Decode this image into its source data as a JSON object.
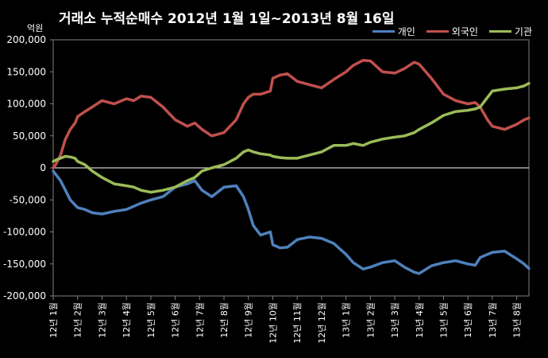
{
  "chart_data": {
    "type": "line",
    "title": "거래소 누적순매수 2012년 1월 1일~2013년 8월 16일",
    "ylabel": "억원",
    "ylim": [
      -200000,
      200000
    ],
    "yticks": [
      200000,
      150000,
      100000,
      50000,
      0,
      -50000,
      -100000,
      -150000,
      -200000
    ],
    "ytick_labels": [
      "200,000",
      "150,000",
      "100,000",
      "50,000",
      "0",
      "-50,000",
      "-100,000",
      "-150,000",
      "-200,000"
    ],
    "x_tick_labels": [
      "12년 1월",
      "12년 2월",
      "12년 3월",
      "12년 4월",
      "12년 5월",
      "12년 6월",
      "12년 7월",
      "12년 8월",
      "12년 9월",
      "12년 10월",
      "12년 11월",
      "12년 12월",
      "13년 1월",
      "13년 2월",
      "13년 3월",
      "13년 4월",
      "13년 5월",
      "13년 6월",
      "13년 7월",
      "13년 8월"
    ],
    "x": [
      0,
      0.1,
      0.3,
      0.5,
      0.7,
      0.9,
      1.0,
      1.3,
      1.6,
      2.0,
      2.5,
      3.0,
      3.3,
      3.6,
      4.0,
      4.5,
      5.0,
      5.5,
      5.8,
      6.1,
      6.5,
      7.0,
      7.5,
      7.8,
      8.0,
      8.2,
      8.5,
      8.9,
      9.0,
      9.3,
      9.6,
      10.0,
      10.5,
      11.0,
      11.5,
      12.0,
      12.3,
      12.7,
      13.0,
      13.5,
      14.0,
      14.4,
      14.8,
      15.0,
      15.5,
      16.0,
      16.5,
      17.0,
      17.3,
      17.5,
      17.8,
      18.0,
      18.5,
      19.0,
      19.3,
      19.5
    ],
    "legend_position": "top-right",
    "grid": false,
    "series": [
      {
        "name": "개인",
        "color": "#4f81bd",
        "values": [
          -5000,
          -10000,
          -20000,
          -35000,
          -50000,
          -58000,
          -62000,
          -65000,
          -70000,
          -72000,
          -68000,
          -65000,
          -60000,
          -55000,
          -50000,
          -45000,
          -30000,
          -25000,
          -20000,
          -35000,
          -45000,
          -30000,
          -28000,
          -45000,
          -65000,
          -90000,
          -105000,
          -100000,
          -120000,
          -125000,
          -124000,
          -112000,
          -108000,
          -110000,
          -118000,
          -135000,
          -148000,
          -158000,
          -155000,
          -148000,
          -145000,
          -155000,
          -163000,
          -165000,
          -153000,
          -148000,
          -145000,
          -150000,
          -152000,
          -140000,
          -135000,
          -132000,
          -130000,
          -142000,
          -150000,
          -157000
        ]
      },
      {
        "name": "외국인",
        "color": "#c0504d",
        "values": [
          0,
          5000,
          20000,
          45000,
          60000,
          70000,
          80000,
          88000,
          95000,
          105000,
          100000,
          108000,
          105000,
          112000,
          110000,
          95000,
          75000,
          65000,
          70000,
          60000,
          50000,
          55000,
          75000,
          100000,
          110000,
          115000,
          115000,
          120000,
          140000,
          145000,
          147000,
          135000,
          130000,
          125000,
          138000,
          150000,
          160000,
          168000,
          167000,
          150000,
          148000,
          155000,
          165000,
          162000,
          140000,
          115000,
          105000,
          100000,
          102000,
          95000,
          75000,
          65000,
          60000,
          68000,
          75000,
          78000
        ]
      },
      {
        "name": "기관",
        "color": "#9bbb59",
        "values": [
          10000,
          12000,
          15000,
          18000,
          17000,
          15000,
          10000,
          5000,
          -5000,
          -15000,
          -25000,
          -28000,
          -30000,
          -35000,
          -38000,
          -35000,
          -30000,
          -20000,
          -15000,
          -5000,
          0,
          5000,
          15000,
          25000,
          28000,
          25000,
          22000,
          20000,
          18000,
          16000,
          15000,
          15000,
          20000,
          25000,
          35000,
          35000,
          38000,
          35000,
          40000,
          45000,
          48000,
          50000,
          55000,
          60000,
          70000,
          82000,
          88000,
          90000,
          92000,
          95000,
          110000,
          120000,
          123000,
          125000,
          128000,
          132000
        ]
      }
    ]
  }
}
